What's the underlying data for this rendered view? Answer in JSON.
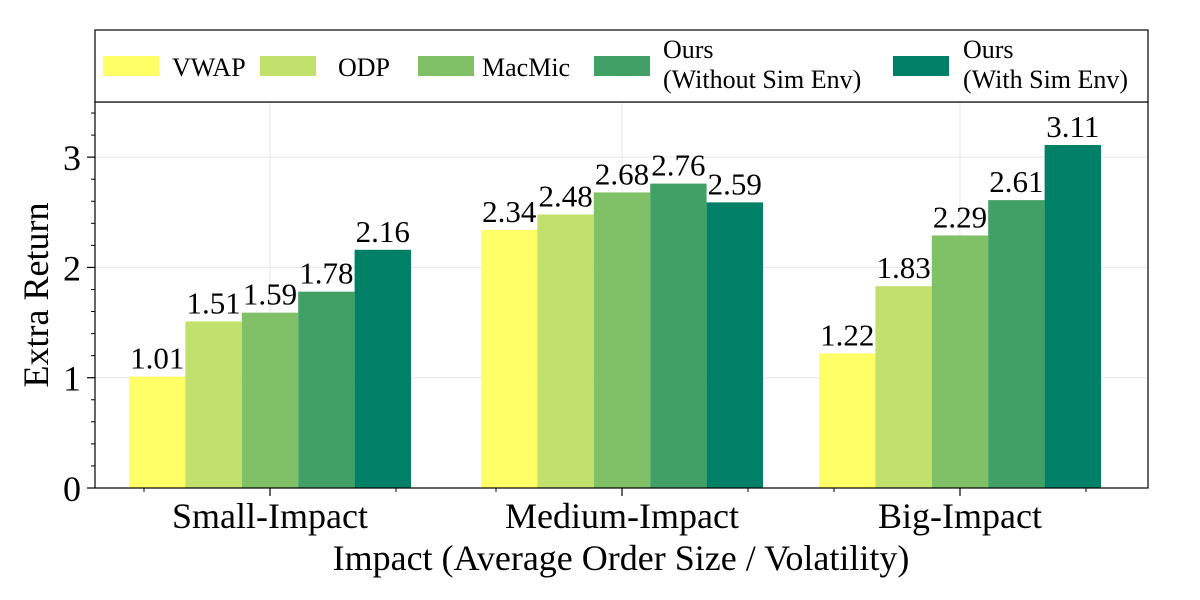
{
  "chart_data": {
    "type": "bar",
    "title": "",
    "xlabel": "Impact (Average Order Size / Volatility)",
    "ylabel": "Extra Return",
    "categories": [
      "Small-Impact",
      "Medium-Impact",
      "Big-Impact"
    ],
    "ylim": [
      0,
      3.5
    ],
    "yticks": [
      "0",
      "1",
      "2",
      "3"
    ],
    "grid": true,
    "legend_position": "top",
    "series": [
      {
        "name": "VWAP",
        "name_lines": [
          "VWAP"
        ],
        "color": "#ffff66",
        "values": [
          1.01,
          2.34,
          1.22
        ],
        "labels": [
          "1.01",
          "2.34",
          "1.22"
        ]
      },
      {
        "name": "ODP",
        "name_lines": [
          "ODP"
        ],
        "color": "#c2e06c",
        "values": [
          1.51,
          2.48,
          1.83
        ],
        "labels": [
          "1.51",
          "2.48",
          "1.83"
        ]
      },
      {
        "name": "MacMic",
        "name_lines": [
          "MacMic"
        ],
        "color": "#80c066",
        "values": [
          1.59,
          2.68,
          2.29
        ],
        "labels": [
          "1.59",
          "2.68",
          "2.29"
        ]
      },
      {
        "name": "Ours (Without Sim Env)",
        "name_lines": [
          "Ours",
          "(Without Sim Env)"
        ],
        "color": "#40a066",
        "values": [
          1.78,
          2.76,
          2.61
        ],
        "labels": [
          "1.78",
          "2.76",
          "2.61"
        ]
      },
      {
        "name": "Ours (With Sim Env)",
        "name_lines": [
          "Ours",
          "(With Sim Env)"
        ],
        "color": "#008066",
        "values": [
          2.16,
          2.59,
          3.11
        ],
        "labels": [
          "2.16",
          "2.59",
          "3.11"
        ]
      }
    ]
  }
}
